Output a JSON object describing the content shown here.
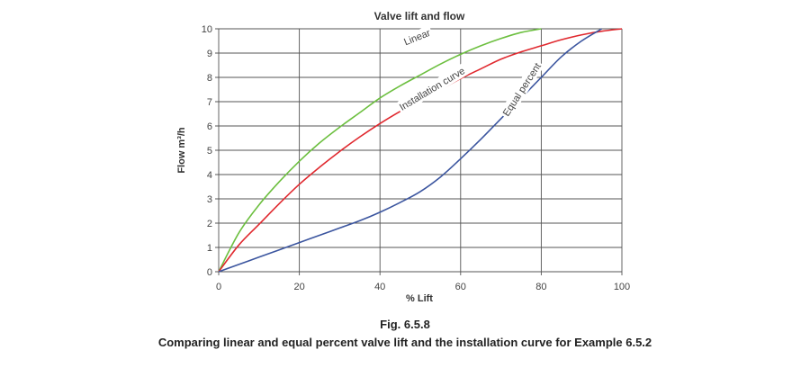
{
  "chart_data": {
    "type": "line",
    "title": "Valve lift and flow",
    "xlabel": "% Lift",
    "ylabel": "Flow m³/h",
    "xlim": [
      0,
      100
    ],
    "ylim": [
      0,
      10
    ],
    "xticks": [
      0,
      20,
      40,
      60,
      80,
      100
    ],
    "yticks": [
      0,
      1,
      2,
      3,
      4,
      5,
      6,
      7,
      8,
      9,
      10
    ],
    "grid": true,
    "series": [
      {
        "name": "Linear",
        "color": "#6cbf3f",
        "x": [
          0,
          5,
          10,
          15,
          20,
          25,
          30,
          35,
          40,
          45,
          50,
          55,
          60,
          65,
          70,
          75,
          80
        ],
        "y": [
          0,
          1.6,
          2.75,
          3.7,
          4.55,
          5.3,
          5.95,
          6.55,
          7.15,
          7.65,
          8.1,
          8.55,
          8.95,
          9.3,
          9.6,
          9.85,
          10
        ]
      },
      {
        "name": "Installation curve",
        "color": "#e0282e",
        "x": [
          0,
          5,
          10,
          15,
          20,
          25,
          30,
          35,
          40,
          45,
          50,
          55,
          60,
          65,
          70,
          75,
          80,
          85,
          90,
          95,
          100
        ],
        "y": [
          0,
          1.1,
          1.95,
          2.8,
          3.6,
          4.3,
          4.95,
          5.55,
          6.1,
          6.6,
          7.05,
          7.5,
          7.95,
          8.35,
          8.75,
          9.05,
          9.3,
          9.55,
          9.75,
          9.9,
          10
        ]
      },
      {
        "name": "Equal percent",
        "color": "#3b559f",
        "x": [
          0,
          5,
          10,
          15,
          20,
          25,
          30,
          35,
          40,
          45,
          50,
          55,
          60,
          65,
          70,
          75,
          80,
          85,
          90,
          95
        ],
        "y": [
          0,
          0.3,
          0.6,
          0.9,
          1.2,
          1.5,
          1.8,
          2.1,
          2.45,
          2.85,
          3.3,
          3.9,
          4.65,
          5.45,
          6.3,
          7.15,
          8.0,
          8.85,
          9.5,
          10
        ]
      }
    ],
    "annotations": [
      {
        "text": "Linear",
        "series": "Linear"
      },
      {
        "text": "Installation curve",
        "series": "Installation curve"
      },
      {
        "text": "Equal percent",
        "series": "Equal percent"
      }
    ]
  },
  "caption": {
    "figure_number": "Fig. 6.5.8",
    "text": "Comparing linear and equal percent valve lift and the installation curve for Example 6.5.2"
  }
}
